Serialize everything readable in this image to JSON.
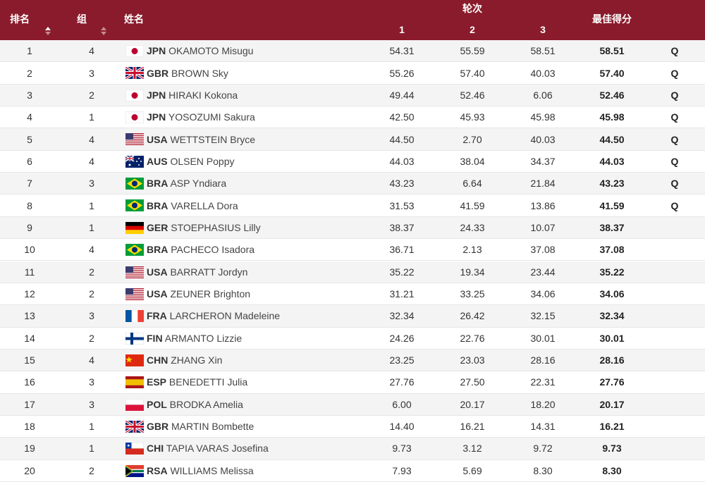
{
  "header": {
    "rank": "排名",
    "group": "组",
    "name": "姓名",
    "rounds_title": "轮次",
    "rounds": [
      "1",
      "2",
      "3"
    ],
    "best": "最佳得分"
  },
  "rows": [
    {
      "rank": 1,
      "group": 4,
      "country": "JPN",
      "name": "OKAMOTO Misugu",
      "scores": [
        "54.31",
        "55.59",
        "58.51"
      ],
      "best": "58.51",
      "q": "Q"
    },
    {
      "rank": 2,
      "group": 3,
      "country": "GBR",
      "name": "BROWN Sky",
      "scores": [
        "55.26",
        "57.40",
        "40.03"
      ],
      "best": "57.40",
      "q": "Q"
    },
    {
      "rank": 3,
      "group": 2,
      "country": "JPN",
      "name": "HIRAKI Kokona",
      "scores": [
        "49.44",
        "52.46",
        "6.06"
      ],
      "best": "52.46",
      "q": "Q"
    },
    {
      "rank": 4,
      "group": 1,
      "country": "JPN",
      "name": "YOSOZUMI Sakura",
      "scores": [
        "42.50",
        "45.93",
        "45.98"
      ],
      "best": "45.98",
      "q": "Q"
    },
    {
      "rank": 5,
      "group": 4,
      "country": "USA",
      "name": "WETTSTEIN Bryce",
      "scores": [
        "44.50",
        "2.70",
        "40.03"
      ],
      "best": "44.50",
      "q": "Q"
    },
    {
      "rank": 6,
      "group": 4,
      "country": "AUS",
      "name": "OLSEN Poppy",
      "scores": [
        "44.03",
        "38.04",
        "34.37"
      ],
      "best": "44.03",
      "q": "Q"
    },
    {
      "rank": 7,
      "group": 3,
      "country": "BRA",
      "name": "ASP Yndiara",
      "scores": [
        "43.23",
        "6.64",
        "21.84"
      ],
      "best": "43.23",
      "q": "Q"
    },
    {
      "rank": 8,
      "group": 1,
      "country": "BRA",
      "name": "VARELLA Dora",
      "scores": [
        "31.53",
        "41.59",
        "13.86"
      ],
      "best": "41.59",
      "q": "Q"
    },
    {
      "rank": 9,
      "group": 1,
      "country": "GER",
      "name": "STOEPHASIUS Lilly",
      "scores": [
        "38.37",
        "24.33",
        "10.07"
      ],
      "best": "38.37"
    },
    {
      "rank": 10,
      "group": 4,
      "country": "BRA",
      "name": "PACHECO Isadora",
      "scores": [
        "36.71",
        "2.13",
        "37.08"
      ],
      "best": "37.08"
    },
    {
      "rank": 11,
      "group": 2,
      "country": "USA",
      "name": "BARRATT Jordyn",
      "scores": [
        "35.22",
        "19.34",
        "23.44"
      ],
      "best": "35.22"
    },
    {
      "rank": 12,
      "group": 2,
      "country": "USA",
      "name": "ZEUNER Brighton",
      "scores": [
        "31.21",
        "33.25",
        "34.06"
      ],
      "best": "34.06"
    },
    {
      "rank": 13,
      "group": 3,
      "country": "FRA",
      "name": "LARCHERON Madeleine",
      "scores": [
        "32.34",
        "26.42",
        "32.15"
      ],
      "best": "32.34"
    },
    {
      "rank": 14,
      "group": 2,
      "country": "FIN",
      "name": "ARMANTO Lizzie",
      "scores": [
        "24.26",
        "22.76",
        "30.01"
      ],
      "best": "30.01"
    },
    {
      "rank": 15,
      "group": 4,
      "country": "CHN",
      "name": "ZHANG Xin",
      "scores": [
        "23.25",
        "23.03",
        "28.16"
      ],
      "best": "28.16"
    },
    {
      "rank": 16,
      "group": 3,
      "country": "ESP",
      "name": "BENEDETTI Julia",
      "scores": [
        "27.76",
        "27.50",
        "22.31"
      ],
      "best": "27.76"
    },
    {
      "rank": 17,
      "group": 3,
      "country": "POL",
      "name": "BRODKA Amelia",
      "scores": [
        "6.00",
        "20.17",
        "18.20"
      ],
      "best": "20.17"
    },
    {
      "rank": 18,
      "group": 1,
      "country": "GBR",
      "name": "MARTIN Bombette",
      "scores": [
        "14.40",
        "16.21",
        "14.31"
      ],
      "best": "16.21"
    },
    {
      "rank": 19,
      "group": 1,
      "country": "CHI",
      "name": "TAPIA VARAS Josefina",
      "scores": [
        "9.73",
        "3.12",
        "9.72"
      ],
      "best": "9.73"
    },
    {
      "rank": 20,
      "group": 2,
      "country": "RSA",
      "name": "WILLIAMS Melissa",
      "scores": [
        "7.93",
        "5.69",
        "8.30"
      ],
      "best": "8.30"
    }
  ]
}
